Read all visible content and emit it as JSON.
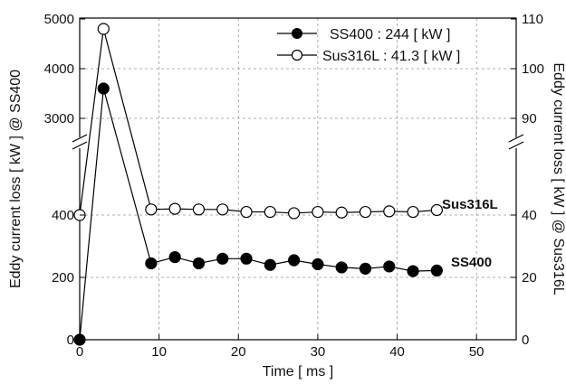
{
  "chart_data": {
    "type": "line",
    "xlabel": "Time [ ms ]",
    "ylabel_left": "Eddy current loss [ kW ] @ SS400",
    "ylabel_right": "Eddy current loss [ kW ] @ Sus316L",
    "xlim": [
      0,
      55
    ],
    "x_ticks": [
      "0",
      "10",
      "20",
      "30",
      "40",
      "50"
    ],
    "left_ticks": [
      "0",
      "200",
      "400",
      "3000",
      "4000",
      "5000"
    ],
    "right_ticks": [
      "0",
      "20",
      "40",
      "90",
      "100",
      "110"
    ],
    "grid": true,
    "legend_position": "top-right",
    "axis_break": true,
    "series": [
      {
        "name": "SS400 : 244  [ kW ]",
        "end_label": "SS400",
        "axis": "left",
        "marker": "filled-circle",
        "color": "#000000",
        "x": [
          0,
          3,
          9,
          12,
          15,
          18,
          21,
          24,
          27,
          30,
          33,
          36,
          39,
          42,
          45
        ],
        "y": [
          0,
          3600,
          245,
          265,
          245,
          260,
          260,
          240,
          255,
          242,
          232,
          228,
          235,
          220,
          222
        ]
      },
      {
        "name": "Sus316L : 41.3  [ kW ]",
        "end_label": "Sus316L",
        "axis": "right",
        "marker": "open-circle",
        "color": "#000000",
        "x": [
          0,
          3,
          9,
          12,
          15,
          18,
          21,
          24,
          27,
          30,
          33,
          36,
          39,
          42,
          45
        ],
        "y": [
          40,
          108,
          41.8,
          42.0,
          41.8,
          41.8,
          41.0,
          41.0,
          40.6,
          41.0,
          40.8,
          41.0,
          41.2,
          41.0,
          41.6
        ]
      }
    ]
  }
}
